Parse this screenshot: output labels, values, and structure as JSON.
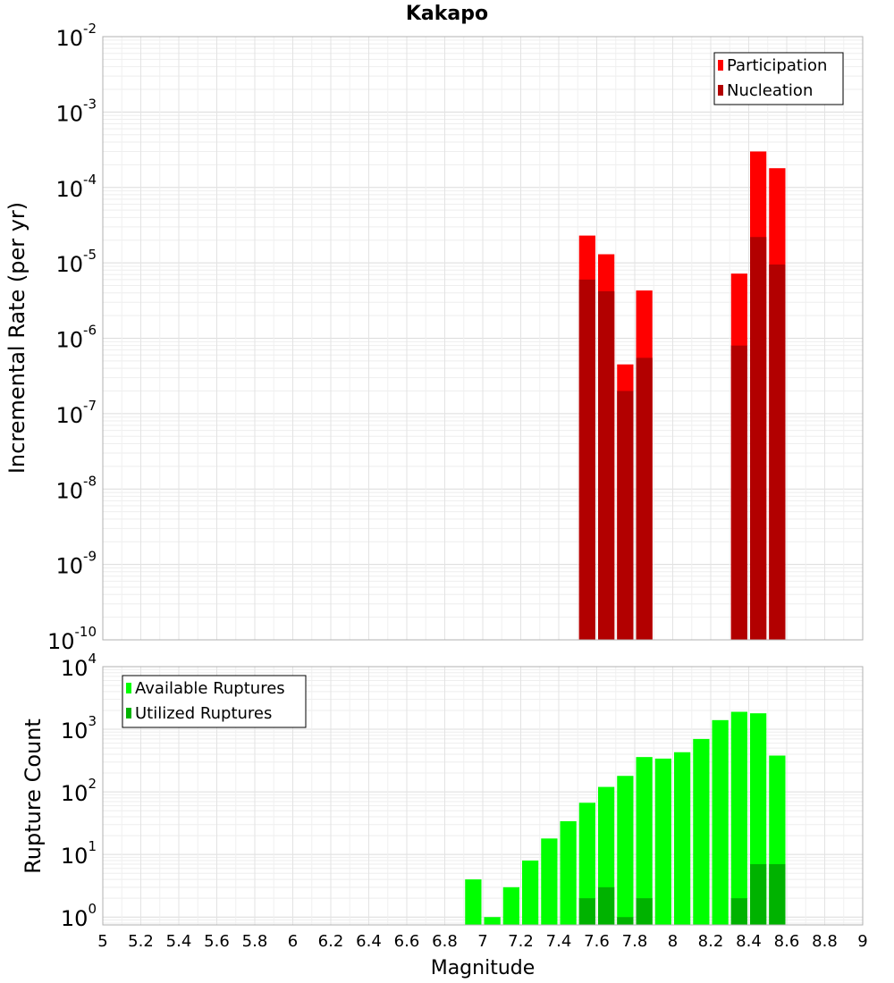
{
  "chart_data": [
    {
      "type": "bar",
      "title": "Kakapo",
      "xlabel": "Magnitude",
      "ylabel": "Incremental Rate (per yr)",
      "yscale": "log",
      "xlim": [
        5,
        9
      ],
      "ylim": [
        1e-10,
        0.01
      ],
      "bin_width": 0.1,
      "legend": {
        "placement": "top-right",
        "entries": [
          "Participation",
          "Nucleation"
        ]
      },
      "series": [
        {
          "name": "Participation",
          "color": "#ff0000",
          "x": [
            7.55,
            7.65,
            7.75,
            7.85,
            8.35,
            8.45,
            8.55
          ],
          "values": [
            2.3e-05,
            1.3e-05,
            4.5e-07,
            4.3e-06,
            7.2e-06,
            0.0003,
            0.00018
          ]
        },
        {
          "name": "Nucleation",
          "color": "#b20000",
          "x": [
            7.55,
            7.65,
            7.75,
            7.85,
            8.35,
            8.45,
            8.55
          ],
          "values": [
            6e-06,
            4.2e-06,
            2e-07,
            5.5e-07,
            8e-07,
            2.2e-05,
            9.5e-06
          ]
        }
      ],
      "y_decades": [
        -10,
        -9,
        -8,
        -7,
        -6,
        -5,
        -4,
        -3,
        -2
      ]
    },
    {
      "type": "bar",
      "title": "",
      "xlabel": "Magnitude",
      "ylabel": "Rupture Count",
      "yscale": "log",
      "xlim": [
        5,
        9
      ],
      "ylim": [
        0.75,
        10000
      ],
      "bin_width": 0.1,
      "legend": {
        "placement": "top-left",
        "entries": [
          "Available Ruptures",
          "Utilized Ruptures"
        ]
      },
      "series": [
        {
          "name": "Available Ruptures",
          "color": "#00ff00",
          "x": [
            6.95,
            7.05,
            7.15,
            7.25,
            7.35,
            7.45,
            7.55,
            7.65,
            7.75,
            7.85,
            7.95,
            8.05,
            8.15,
            8.25,
            8.35,
            8.45,
            8.55
          ],
          "values": [
            4,
            1,
            3,
            8,
            18,
            34,
            67,
            120,
            180,
            360,
            340,
            430,
            700,
            1400,
            1900,
            1800,
            380
          ]
        },
        {
          "name": "Utilized Ruptures",
          "color": "#00b200",
          "x": [
            7.55,
            7.65,
            7.75,
            7.85,
            8.35,
            8.45,
            8.55
          ],
          "values": [
            2,
            3,
            1,
            2,
            2,
            7,
            7
          ]
        }
      ],
      "y_decades": [
        0,
        1,
        2,
        3,
        4
      ]
    }
  ],
  "x_ticks": [
    "5",
    "5.2",
    "5.4",
    "5.6",
    "5.8",
    "6",
    "6.2",
    "6.4",
    "6.6",
    "6.8",
    "7",
    "7.2",
    "7.4",
    "7.6",
    "7.8",
    "8",
    "8.2",
    "8.4",
    "8.6",
    "8.8",
    "9"
  ],
  "decade_base": "10"
}
